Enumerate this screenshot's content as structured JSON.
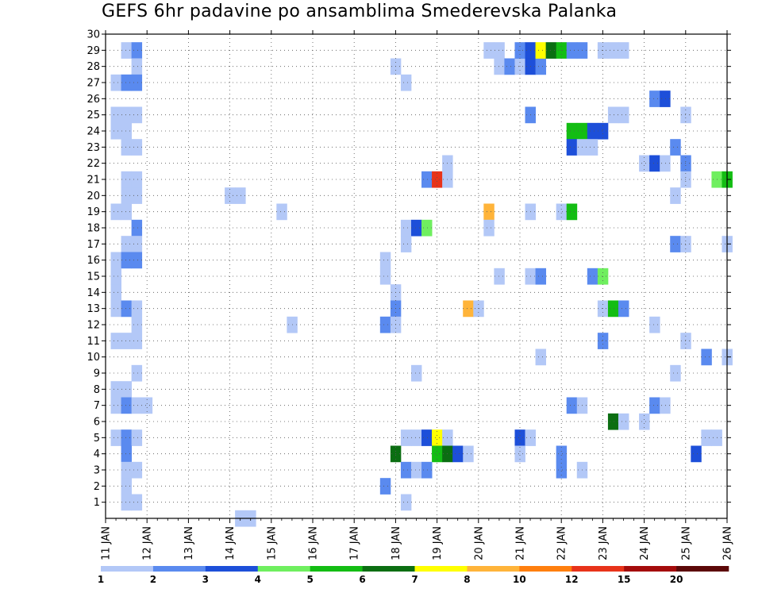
{
  "chart_data": {
    "type": "heatmap",
    "title": "GEFS 6hr padavine po ansamblima Smederevska Palanka",
    "xlabel": "",
    "ylabel": "",
    "x_tick_labels": [
      "11 JAN",
      "12 JAN",
      "13 JAN",
      "14 JAN",
      "15 JAN",
      "16 JAN",
      "17 JAN",
      "18 JAN",
      "19 JAN",
      "20 JAN",
      "21 JAN",
      "22 JAN",
      "23 JAN",
      "24 JAN",
      "25 JAN",
      "26 JAN"
    ],
    "y_tick_labels": [
      "1",
      "2",
      "3",
      "4",
      "5",
      "6",
      "7",
      "8",
      "9",
      "10",
      "11",
      "12",
      "13",
      "14",
      "15",
      "16",
      "17",
      "18",
      "19",
      "20",
      "21",
      "22",
      "23",
      "24",
      "25",
      "26",
      "27",
      "28",
      "29",
      "30"
    ],
    "x_range_days": [
      11,
      26
    ],
    "y_range_members": [
      0,
      30
    ],
    "grid": true,
    "colorbar": {
      "position": "bottom",
      "labels": [
        "1",
        "2",
        "3",
        "4",
        "5",
        "6",
        "7",
        "8",
        "10",
        "12",
        "15",
        "20"
      ],
      "colors": [
        "#b3c8f7",
        "#5a8aef",
        "#1d4fd9",
        "#6fef5f",
        "#13bd13",
        "#0b6e12",
        "#ffff00",
        "#ffb43a",
        "#ff7f0e",
        "#e8331a",
        "#a40b0b",
        "#5c0808"
      ]
    },
    "cells": [
      {
        "x": 11.5,
        "y": 29,
        "c": 0
      },
      {
        "x": 11.75,
        "y": 29,
        "c": 1
      },
      {
        "x": 11.75,
        "y": 28,
        "c": 0
      },
      {
        "x": 11.25,
        "y": 27,
        "c": 0
      },
      {
        "x": 11.5,
        "y": 27,
        "c": 1
      },
      {
        "x": 11.75,
        "y": 27,
        "c": 1
      },
      {
        "x": 11.25,
        "y": 25,
        "c": 0
      },
      {
        "x": 11.5,
        "y": 25,
        "c": 0
      },
      {
        "x": 11.75,
        "y": 25,
        "c": 0
      },
      {
        "x": 11.25,
        "y": 24,
        "c": 0
      },
      {
        "x": 11.5,
        "y": 24,
        "c": 0
      },
      {
        "x": 11.5,
        "y": 23,
        "c": 0
      },
      {
        "x": 11.75,
        "y": 23,
        "c": 0
      },
      {
        "x": 11.5,
        "y": 21,
        "c": 0
      },
      {
        "x": 11.75,
        "y": 21,
        "c": 0
      },
      {
        "x": 11.5,
        "y": 20,
        "c": 0
      },
      {
        "x": 11.75,
        "y": 20,
        "c": 0
      },
      {
        "x": 11.25,
        "y": 19,
        "c": 0
      },
      {
        "x": 11.5,
        "y": 19,
        "c": 0
      },
      {
        "x": 11.75,
        "y": 18,
        "c": 1
      },
      {
        "x": 11.5,
        "y": 17,
        "c": 0
      },
      {
        "x": 11.75,
        "y": 17,
        "c": 0
      },
      {
        "x": 11.25,
        "y": 16,
        "c": 0
      },
      {
        "x": 11.5,
        "y": 16,
        "c": 1
      },
      {
        "x": 11.75,
        "y": 16,
        "c": 1
      },
      {
        "x": 11.25,
        "y": 15,
        "c": 0
      },
      {
        "x": 11.25,
        "y": 14,
        "c": 0
      },
      {
        "x": 11.25,
        "y": 13,
        "c": 0
      },
      {
        "x": 11.5,
        "y": 13,
        "c": 1
      },
      {
        "x": 11.75,
        "y": 13,
        "c": 0
      },
      {
        "x": 11.75,
        "y": 12,
        "c": 0
      },
      {
        "x": 11.25,
        "y": 11,
        "c": 0
      },
      {
        "x": 11.5,
        "y": 11,
        "c": 0
      },
      {
        "x": 11.75,
        "y": 11,
        "c": 0
      },
      {
        "x": 11.75,
        "y": 9,
        "c": 0
      },
      {
        "x": 11.25,
        "y": 8,
        "c": 0
      },
      {
        "x": 11.5,
        "y": 8,
        "c": 0
      },
      {
        "x": 11.25,
        "y": 7,
        "c": 0
      },
      {
        "x": 11.5,
        "y": 7,
        "c": 1
      },
      {
        "x": 11.75,
        "y": 7,
        "c": 0
      },
      {
        "x": 12.0,
        "y": 7,
        "c": 0
      },
      {
        "x": 11.25,
        "y": 5,
        "c": 0
      },
      {
        "x": 11.5,
        "y": 5,
        "c": 1
      },
      {
        "x": 11.75,
        "y": 5,
        "c": 0
      },
      {
        "x": 11.5,
        "y": 4,
        "c": 1
      },
      {
        "x": 11.5,
        "y": 3,
        "c": 0
      },
      {
        "x": 11.75,
        "y": 3,
        "c": 0
      },
      {
        "x": 11.5,
        "y": 2,
        "c": 0
      },
      {
        "x": 11.5,
        "y": 1,
        "c": 0
      },
      {
        "x": 11.75,
        "y": 1,
        "c": 0
      },
      {
        "x": 14.0,
        "y": 20,
        "c": 0
      },
      {
        "x": 14.25,
        "y": 20,
        "c": 0
      },
      {
        "x": 14.25,
        "y": 0,
        "c": 0
      },
      {
        "x": 14.5,
        "y": 0,
        "c": 0
      },
      {
        "x": 15.25,
        "y": 19,
        "c": 0
      },
      {
        "x": 15.5,
        "y": 12,
        "c": 0
      },
      {
        "x": 18.0,
        "y": 28,
        "c": 0
      },
      {
        "x": 18.25,
        "y": 27,
        "c": 0
      },
      {
        "x": 18.75,
        "y": 21,
        "c": 1
      },
      {
        "x": 19.0,
        "y": 21,
        "c": 9
      },
      {
        "x": 19.25,
        "y": 22,
        "c": 0
      },
      {
        "x": 19.25,
        "y": 21,
        "c": 0
      },
      {
        "x": 17.75,
        "y": 16,
        "c": 0
      },
      {
        "x": 17.75,
        "y": 15,
        "c": 0
      },
      {
        "x": 18.25,
        "y": 18,
        "c": 0
      },
      {
        "x": 18.5,
        "y": 18,
        "c": 2
      },
      {
        "x": 18.75,
        "y": 18,
        "c": 3
      },
      {
        "x": 18.25,
        "y": 17,
        "c": 0
      },
      {
        "x": 18.0,
        "y": 14,
        "c": 0
      },
      {
        "x": 18.0,
        "y": 13,
        "c": 1
      },
      {
        "x": 17.75,
        "y": 12,
        "c": 1
      },
      {
        "x": 18.0,
        "y": 12,
        "c": 0
      },
      {
        "x": 18.5,
        "y": 9,
        "c": 0
      },
      {
        "x": 18.25,
        "y": 5,
        "c": 0
      },
      {
        "x": 18.5,
        "y": 5,
        "c": 0
      },
      {
        "x": 18.75,
        "y": 5,
        "c": 2
      },
      {
        "x": 19.0,
        "y": 5,
        "c": 6
      },
      {
        "x": 19.25,
        "y": 5,
        "c": 0
      },
      {
        "x": 18.0,
        "y": 4,
        "c": 5
      },
      {
        "x": 19.0,
        "y": 4,
        "c": 4
      },
      {
        "x": 19.25,
        "y": 4,
        "c": 5
      },
      {
        "x": 19.5,
        "y": 4,
        "c": 2
      },
      {
        "x": 19.75,
        "y": 4,
        "c": 0
      },
      {
        "x": 18.25,
        "y": 3,
        "c": 1
      },
      {
        "x": 18.5,
        "y": 3,
        "c": 0
      },
      {
        "x": 18.75,
        "y": 3,
        "c": 1
      },
      {
        "x": 17.75,
        "y": 2,
        "c": 1
      },
      {
        "x": 18.25,
        "y": 1,
        "c": 0
      },
      {
        "x": 19.75,
        "y": 13,
        "c": 7
      },
      {
        "x": 20.0,
        "y": 13,
        "c": 0
      },
      {
        "x": 20.25,
        "y": 19,
        "c": 7
      },
      {
        "x": 20.25,
        "y": 18,
        "c": 0
      },
      {
        "x": 20.25,
        "y": 29,
        "c": 0
      },
      {
        "x": 20.5,
        "y": 29,
        "c": 0
      },
      {
        "x": 20.5,
        "y": 28,
        "c": 0
      },
      {
        "x": 20.75,
        "y": 28,
        "c": 1
      },
      {
        "x": 21.0,
        "y": 28,
        "c": 0
      },
      {
        "x": 21.25,
        "y": 28,
        "c": 2
      },
      {
        "x": 21.5,
        "y": 28,
        "c": 1
      },
      {
        "x": 21.0,
        "y": 29,
        "c": 1
      },
      {
        "x": 21.25,
        "y": 29,
        "c": 2
      },
      {
        "x": 21.5,
        "y": 29,
        "c": 6
      },
      {
        "x": 21.75,
        "y": 29,
        "c": 5
      },
      {
        "x": 22.0,
        "y": 29,
        "c": 4
      },
      {
        "x": 22.25,
        "y": 29,
        "c": 1
      },
      {
        "x": 22.5,
        "y": 29,
        "c": 1
      },
      {
        "x": 23.0,
        "y": 29,
        "c": 0
      },
      {
        "x": 23.25,
        "y": 29,
        "c": 0
      },
      {
        "x": 23.5,
        "y": 29,
        "c": 0
      },
      {
        "x": 21.25,
        "y": 25,
        "c": 1
      },
      {
        "x": 22.25,
        "y": 24,
        "c": 4
      },
      {
        "x": 22.5,
        "y": 24,
        "c": 4
      },
      {
        "x": 22.75,
        "y": 24,
        "c": 2
      },
      {
        "x": 23.0,
        "y": 24,
        "c": 2
      },
      {
        "x": 23.25,
        "y": 25,
        "c": 0
      },
      {
        "x": 23.5,
        "y": 25,
        "c": 0
      },
      {
        "x": 22.25,
        "y": 23,
        "c": 2
      },
      {
        "x": 22.5,
        "y": 23,
        "c": 0
      },
      {
        "x": 22.75,
        "y": 23,
        "c": 0
      },
      {
        "x": 21.25,
        "y": 19,
        "c": 0
      },
      {
        "x": 22.0,
        "y": 19,
        "c": 0
      },
      {
        "x": 22.25,
        "y": 19,
        "c": 4
      },
      {
        "x": 20.5,
        "y": 15,
        "c": 0
      },
      {
        "x": 21.25,
        "y": 15,
        "c": 0
      },
      {
        "x": 21.5,
        "y": 15,
        "c": 1
      },
      {
        "x": 22.75,
        "y": 15,
        "c": 1
      },
      {
        "x": 23.0,
        "y": 15,
        "c": 3
      },
      {
        "x": 23.0,
        "y": 13,
        "c": 0
      },
      {
        "x": 23.25,
        "y": 13,
        "c": 4
      },
      {
        "x": 23.5,
        "y": 13,
        "c": 1
      },
      {
        "x": 23.0,
        "y": 11,
        "c": 1
      },
      {
        "x": 21.5,
        "y": 10,
        "c": 0
      },
      {
        "x": 22.25,
        "y": 7,
        "c": 1
      },
      {
        "x": 22.5,
        "y": 7,
        "c": 0
      },
      {
        "x": 23.25,
        "y": 6,
        "c": 5
      },
      {
        "x": 23.5,
        "y": 6,
        "c": 0
      },
      {
        "x": 24.0,
        "y": 6,
        "c": 0
      },
      {
        "x": 21.0,
        "y": 5,
        "c": 2
      },
      {
        "x": 21.25,
        "y": 5,
        "c": 0
      },
      {
        "x": 21.0,
        "y": 4,
        "c": 0
      },
      {
        "x": 22.0,
        "y": 4,
        "c": 1
      },
      {
        "x": 22.0,
        "y": 3,
        "c": 1
      },
      {
        "x": 22.5,
        "y": 3,
        "c": 0
      },
      {
        "x": 24.25,
        "y": 26,
        "c": 1
      },
      {
        "x": 24.5,
        "y": 26,
        "c": 2
      },
      {
        "x": 24.75,
        "y": 23,
        "c": 1
      },
      {
        "x": 25.0,
        "y": 25,
        "c": 0
      },
      {
        "x": 24.0,
        "y": 22,
        "c": 0
      },
      {
        "x": 24.25,
        "y": 22,
        "c": 2
      },
      {
        "x": 24.5,
        "y": 22,
        "c": 0
      },
      {
        "x": 25.0,
        "y": 22,
        "c": 1
      },
      {
        "x": 25.0,
        "y": 21,
        "c": 0
      },
      {
        "x": 24.75,
        "y": 20,
        "c": 0
      },
      {
        "x": 25.75,
        "y": 21,
        "c": 3
      },
      {
        "x": 26.0,
        "y": 21,
        "c": 4
      },
      {
        "x": 24.75,
        "y": 17,
        "c": 1
      },
      {
        "x": 25.0,
        "y": 17,
        "c": 0
      },
      {
        "x": 26.0,
        "y": 17,
        "c": 0
      },
      {
        "x": 24.25,
        "y": 12,
        "c": 0
      },
      {
        "x": 25.0,
        "y": 11,
        "c": 0
      },
      {
        "x": 25.5,
        "y": 10,
        "c": 1
      },
      {
        "x": 26.0,
        "y": 10,
        "c": 0
      },
      {
        "x": 24.75,
        "y": 9,
        "c": 0
      },
      {
        "x": 24.25,
        "y": 7,
        "c": 1
      },
      {
        "x": 24.5,
        "y": 7,
        "c": 0
      },
      {
        "x": 25.5,
        "y": 5,
        "c": 0
      },
      {
        "x": 25.75,
        "y": 5,
        "c": 0
      },
      {
        "x": 25.25,
        "y": 4,
        "c": 2
      }
    ]
  }
}
